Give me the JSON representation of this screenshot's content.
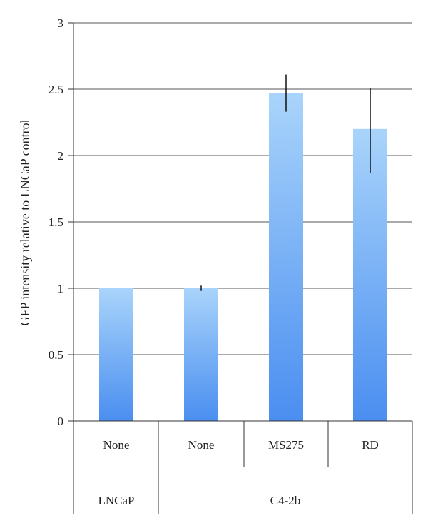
{
  "chart_data": {
    "type": "bar",
    "ylabel": "GFP intensity relative to LNCaP control",
    "xlabel": "",
    "ylim": [
      0,
      3
    ],
    "yticks": [
      "0",
      "0.5",
      "1",
      "1.5",
      "2",
      "2.5",
      "3"
    ],
    "grid": true,
    "categories": [
      "None",
      "None",
      "MS275",
      "RD"
    ],
    "groups": [
      {
        "label": "LNCaP",
        "span": 1
      },
      {
        "label": "C4-2b",
        "span": 3
      }
    ],
    "values": [
      1.0,
      1.005,
      2.47,
      2.2
    ],
    "error_low": [
      1.0,
      0.98,
      2.33,
      1.87
    ],
    "error_high": [
      1.0,
      1.02,
      2.61,
      2.51
    ],
    "bar_color_top": "#a9d4fb",
    "bar_color_bottom": "#4a8ef0"
  }
}
